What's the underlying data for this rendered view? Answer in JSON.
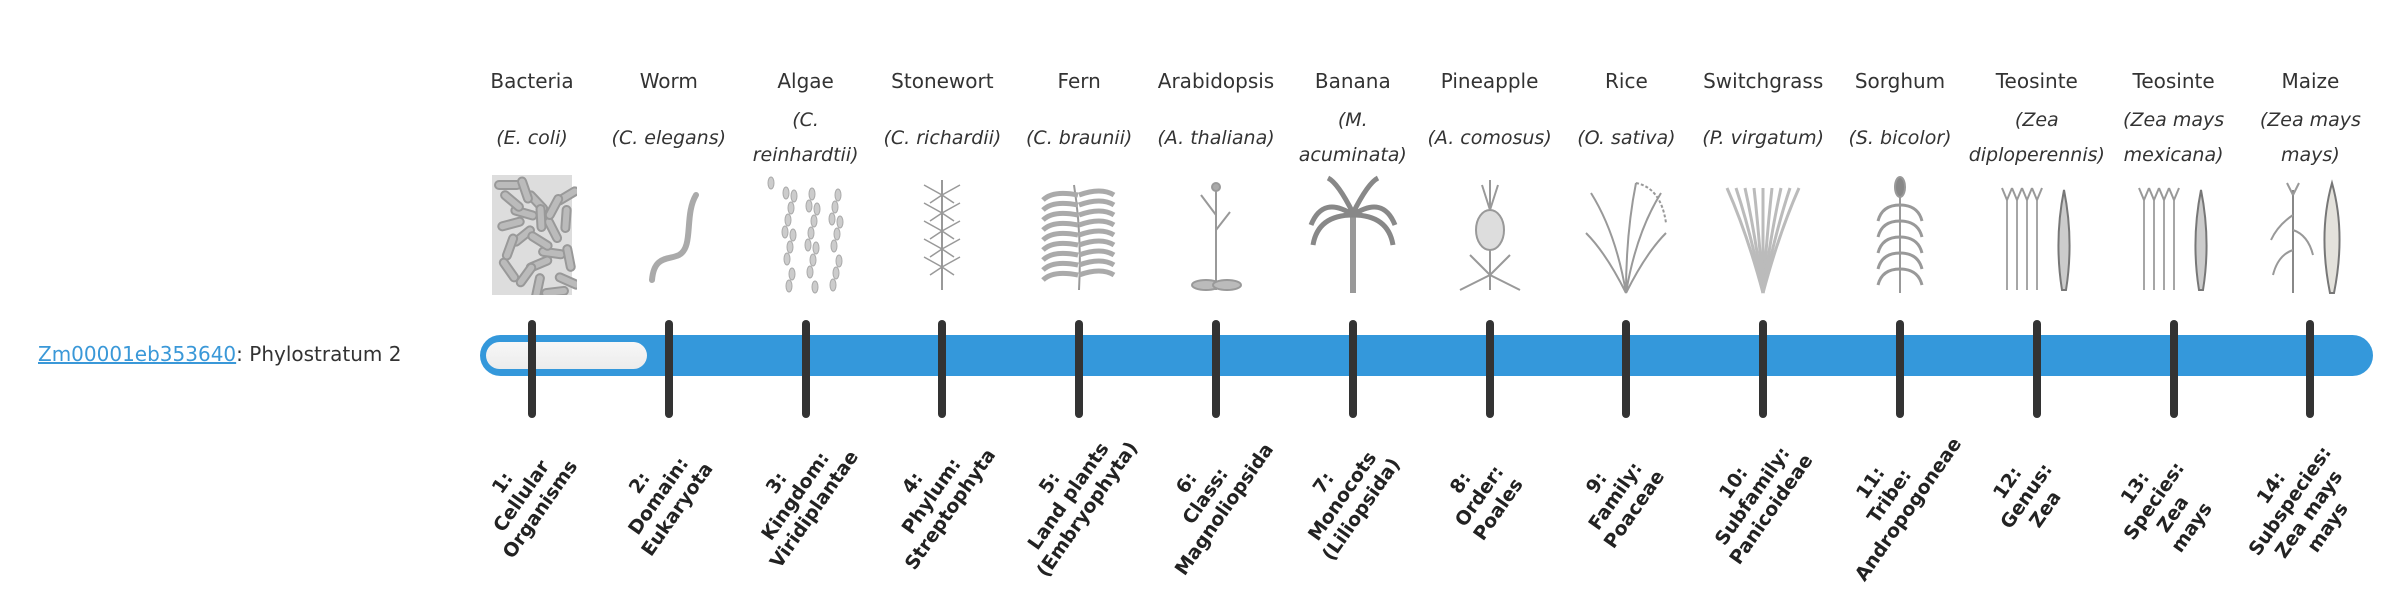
{
  "gene": {
    "id": "Zm00001eb353640",
    "suffix": ": Phylostratum 2"
  },
  "progress": {
    "current_stratum": 2,
    "total_strata": 14,
    "bar_color": "#3498db",
    "tick_color": "#333333"
  },
  "strata": [
    {
      "common": "Bacteria",
      "scientific": "(E. coli)",
      "icon": "bacteria-icon",
      "label": [
        "1:",
        "Cellular",
        "Organisms"
      ]
    },
    {
      "common": "Worm",
      "scientific": "(C. elegans)",
      "icon": "worm-icon",
      "label": [
        "2:",
        "Domain:",
        "Eukaryota"
      ]
    },
    {
      "common": "Algae",
      "scientific": "(C. reinhardtii)",
      "icon": "algae-icon",
      "label": [
        "3:",
        "Kingdom:",
        "Viridiplantae"
      ]
    },
    {
      "common": "Stonewort",
      "scientific": "(C. richardii)",
      "icon": "stonewort-icon",
      "label": [
        "4:",
        "Phylum:",
        "Streptophyta"
      ]
    },
    {
      "common": "Fern",
      "scientific": "(C. braunii)",
      "icon": "fern-icon",
      "label": [
        "5:",
        "Land plants",
        "(Embryophyta)"
      ]
    },
    {
      "common": "Arabidopsis",
      "scientific": "(A. thaliana)",
      "icon": "arabidopsis-icon",
      "label": [
        "6:",
        "Class:",
        "Magnoliopsida"
      ]
    },
    {
      "common": "Banana",
      "scientific": "(M. acuminata)",
      "icon": "banana-icon",
      "label": [
        "7:",
        "Monocots",
        "(Liliopsida)"
      ]
    },
    {
      "common": "Pineapple",
      "scientific": "(A. comosus)",
      "icon": "pineapple-icon",
      "label": [
        "8:",
        "Order:",
        "Poales"
      ]
    },
    {
      "common": "Rice",
      "scientific": "(O. sativa)",
      "icon": "rice-icon",
      "label": [
        "9:",
        "Family:",
        "Poaceae"
      ]
    },
    {
      "common": "Switchgrass",
      "scientific": "(P. virgatum)",
      "icon": "switchgrass-icon",
      "label": [
        "10:",
        "Subfamily:",
        "Panicoideae"
      ]
    },
    {
      "common": "Sorghum",
      "scientific": "(S. bicolor)",
      "icon": "sorghum-icon",
      "label": [
        "11:",
        "Tribe:",
        "Andropogoneae"
      ]
    },
    {
      "common": "Teosinte",
      "scientific": "(Zea diploperennis)",
      "icon": "teosinte-icon",
      "label": [
        "12:",
        "Genus:",
        "Zea"
      ]
    },
    {
      "common": "Teosinte",
      "scientific": "(Zea mays mexicana)",
      "icon": "teosinte-icon",
      "label": [
        "13:",
        "Species:",
        "Zea",
        "mays"
      ]
    },
    {
      "common": "Maize",
      "scientific": "(Zea mays mays)",
      "icon": "maize-icon",
      "label": [
        "14:",
        "Subspecies:",
        "Zea mays",
        "mays"
      ]
    }
  ]
}
